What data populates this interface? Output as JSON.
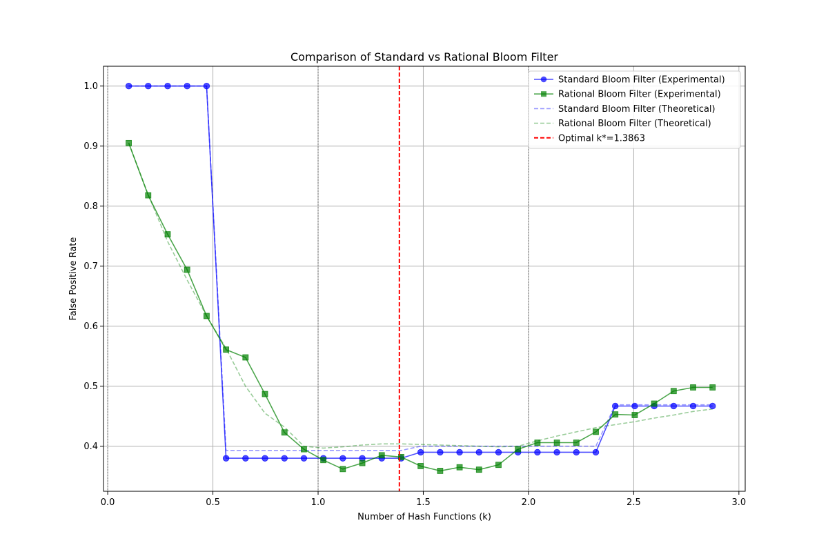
{
  "chart_data": {
    "type": "line",
    "title": "Comparison of Standard vs Rational Bloom Filter",
    "xlabel": "Number of Hash Functions (k)",
    "ylabel": "False Positive Rate",
    "xlim": [
      -0.02,
      3.03
    ],
    "ylim": [
      0.325,
      1.033
    ],
    "xticks": [
      0.0,
      0.5,
      1.0,
      1.5,
      2.0,
      2.5,
      3.0
    ],
    "xtick_labels": [
      "0.0",
      "0.5",
      "1.0",
      "1.5",
      "2.0",
      "2.5",
      "3.0"
    ],
    "yticks": [
      0.4,
      0.5,
      0.6,
      0.7,
      0.8,
      0.9,
      1.0
    ],
    "ytick_labels": [
      "0.4",
      "0.5",
      "0.6",
      "0.7",
      "0.8",
      "0.9",
      "1.0"
    ],
    "grid": true,
    "integer_dotted_lines": [
      0.0,
      1.0,
      2.0
    ],
    "legend_position": "upper right",
    "x": [
      0.1,
      0.1925,
      0.285,
      0.3775,
      0.47,
      0.5625,
      0.655,
      0.7475,
      0.84,
      0.9325,
      1.025,
      1.1175,
      1.21,
      1.3025,
      1.395,
      1.4875,
      1.58,
      1.6725,
      1.765,
      1.8575,
      1.95,
      2.0425,
      2.135,
      2.2275,
      2.32,
      2.4125,
      2.505,
      2.5975,
      2.69,
      2.7825,
      2.875
    ],
    "series": [
      {
        "name": "Standard Bloom Filter (Experimental)",
        "color": "#0000ff",
        "marker": "circle",
        "linestyle": "solid",
        "values": [
          1.0,
          1.0,
          1.0,
          1.0,
          1.0,
          0.38,
          0.38,
          0.38,
          0.38,
          0.38,
          0.38,
          0.38,
          0.38,
          0.38,
          0.38,
          0.39,
          0.39,
          0.39,
          0.39,
          0.39,
          0.39,
          0.39,
          0.39,
          0.39,
          0.39,
          0.467,
          0.467,
          0.467,
          0.467,
          0.467,
          0.467
        ]
      },
      {
        "name": "Rational Bloom Filter (Experimental)",
        "color": "#008000",
        "marker": "square",
        "linestyle": "solid",
        "values": [
          0.905,
          0.818,
          0.753,
          0.694,
          0.617,
          0.561,
          0.548,
          0.487,
          0.423,
          0.395,
          0.377,
          0.362,
          0.372,
          0.385,
          0.382,
          0.367,
          0.359,
          0.365,
          0.361,
          0.369,
          0.395,
          0.406,
          0.406,
          0.406,
          0.424,
          0.453,
          0.452,
          0.471,
          0.492,
          0.498,
          0.498
        ]
      },
      {
        "name": "Standard Bloom Filter (Theoretical)",
        "color": "#0000ff",
        "marker": "none",
        "linestyle": "dashed",
        "values": [
          1.0,
          1.0,
          1.0,
          1.0,
          1.0,
          0.393,
          0.393,
          0.393,
          0.393,
          0.393,
          0.393,
          0.393,
          0.393,
          0.393,
          0.393,
          0.4,
          0.4,
          0.4,
          0.4,
          0.4,
          0.4,
          0.4,
          0.4,
          0.4,
          0.4,
          0.469,
          0.469,
          0.469,
          0.469,
          0.469,
          0.469
        ]
      },
      {
        "name": "Rational Bloom Filter (Theoretical)",
        "color": "#008000",
        "marker": "none",
        "linestyle": "dashed",
        "values": [
          0.905,
          0.819,
          0.741,
          0.677,
          0.617,
          0.563,
          0.5,
          0.455,
          0.432,
          0.4,
          0.397,
          0.399,
          0.402,
          0.404,
          0.404,
          0.403,
          0.402,
          0.401,
          0.4,
          0.399,
          0.4,
          0.409,
          0.417,
          0.424,
          0.431,
          0.436,
          0.441,
          0.447,
          0.452,
          0.458,
          0.462
        ]
      }
    ],
    "vline": {
      "name": "Optimal k*=1.3863",
      "x": 1.3863,
      "color": "#ff0000",
      "linestyle": "dashed"
    }
  }
}
